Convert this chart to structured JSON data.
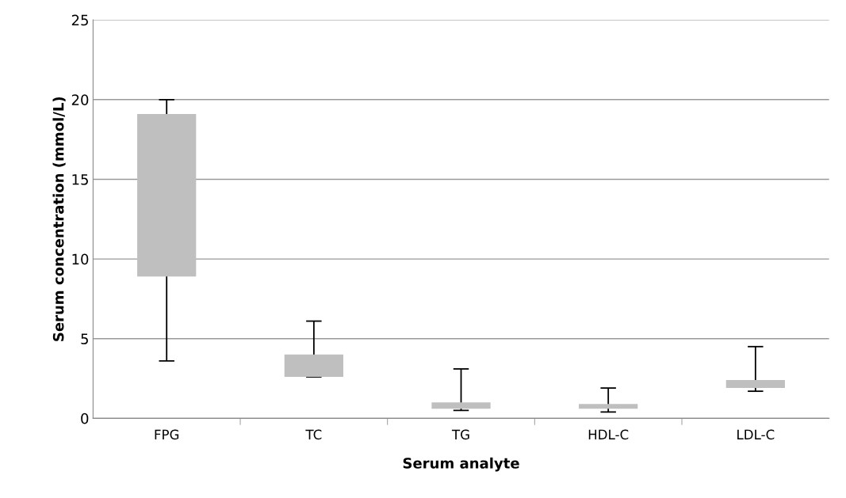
{
  "chart_data": {
    "type": "bar",
    "xlabel": "Serum analyte",
    "ylabel": "Serum concentration (mmol/L)",
    "categories": [
      "FPG",
      "TC",
      "TG",
      "HDL-C",
      "LDL-C"
    ],
    "base": [
      8.9,
      2.6,
      0.6,
      0.6,
      1.9
    ],
    "values": [
      10.2,
      1.4,
      0.4,
      0.3,
      0.5
    ],
    "errors": [
      [
        3.6,
        20.0
      ],
      [
        2.6,
        6.1
      ],
      [
        0.5,
        3.1
      ],
      [
        0.4,
        1.9
      ],
      [
        1.7,
        4.5
      ]
    ],
    "color": "#bfbfbf",
    "ylim": [
      0,
      25
    ],
    "yticks": [
      0,
      5,
      10,
      15,
      20,
      25
    ],
    "grid": "y"
  }
}
